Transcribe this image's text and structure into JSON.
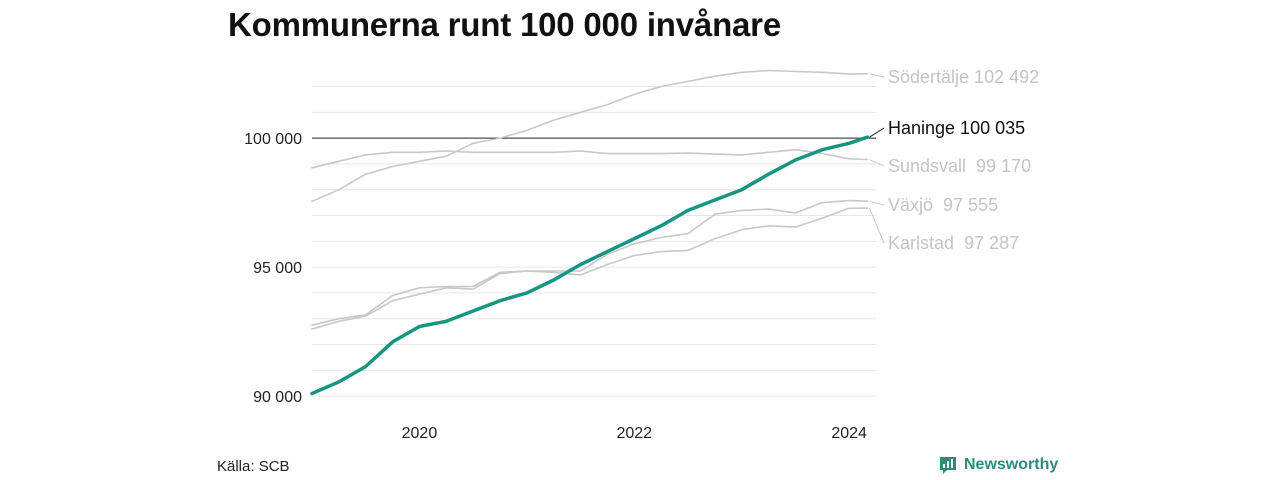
{
  "title": "Kommunerna runt 100 000 invånare",
  "source": "Källa: SCB",
  "brand": "Newsworthy",
  "colors": {
    "highlight": "#169581",
    "other": "#c8c8c8",
    "grid": "#e6e6e6",
    "reference": "#222222",
    "brand": "#2e8b78"
  },
  "chart_data": {
    "type": "line",
    "title": "Kommunerna runt 100 000 invånare",
    "xlabel": "",
    "ylabel": "",
    "xlim": [
      2019.0,
      2024.25
    ],
    "ylim": [
      89850,
      102950
    ],
    "x_ticks": [
      2020,
      2022,
      2024
    ],
    "x_tick_labels": [
      "2020",
      "2022",
      "2024"
    ],
    "y_ticks": [
      90000,
      95000,
      100000
    ],
    "y_tick_labels": [
      "90 000",
      "95 000",
      "100 000"
    ],
    "grid": true,
    "reference_line": 100000,
    "series": [
      {
        "name": "Södertälje",
        "label": "Södertälje 102 492",
        "highlight": false,
        "points": [
          [
            2019.0,
            97550
          ],
          [
            2019.25,
            98000
          ],
          [
            2019.5,
            98600
          ],
          [
            2019.75,
            98900
          ],
          [
            2020.0,
            99100
          ],
          [
            2020.25,
            99300
          ],
          [
            2020.5,
            99800
          ],
          [
            2020.75,
            100000
          ],
          [
            2021.0,
            100300
          ],
          [
            2021.25,
            100700
          ],
          [
            2021.5,
            101000
          ],
          [
            2021.75,
            101300
          ],
          [
            2022.0,
            101700
          ],
          [
            2022.25,
            102000
          ],
          [
            2022.5,
            102200
          ],
          [
            2022.75,
            102400
          ],
          [
            2023.0,
            102550
          ],
          [
            2023.25,
            102620
          ],
          [
            2023.5,
            102580
          ],
          [
            2023.75,
            102550
          ],
          [
            2024.0,
            102480
          ],
          [
            2024.17,
            102492
          ]
        ]
      },
      {
        "name": "Haninge",
        "label": "Haninge 100 035",
        "highlight": true,
        "points": [
          [
            2019.0,
            90100
          ],
          [
            2019.25,
            90550
          ],
          [
            2019.5,
            91150
          ],
          [
            2019.75,
            92100
          ],
          [
            2020.0,
            92700
          ],
          [
            2020.25,
            92900
          ],
          [
            2020.5,
            93300
          ],
          [
            2020.75,
            93700
          ],
          [
            2021.0,
            94000
          ],
          [
            2021.25,
            94500
          ],
          [
            2021.5,
            95100
          ],
          [
            2021.75,
            95600
          ],
          [
            2022.0,
            96100
          ],
          [
            2022.25,
            96600
          ],
          [
            2022.5,
            97200
          ],
          [
            2022.75,
            97600
          ],
          [
            2023.0,
            98000
          ],
          [
            2023.25,
            98600
          ],
          [
            2023.5,
            99150
          ],
          [
            2023.75,
            99550
          ],
          [
            2024.0,
            99800
          ],
          [
            2024.17,
            100035
          ]
        ]
      },
      {
        "name": "Sundsvall",
        "label": "Sundsvall  99 170",
        "highlight": false,
        "points": [
          [
            2019.0,
            98850
          ],
          [
            2019.25,
            99100
          ],
          [
            2019.5,
            99350
          ],
          [
            2019.75,
            99450
          ],
          [
            2020.0,
            99450
          ],
          [
            2020.25,
            99500
          ],
          [
            2020.5,
            99450
          ],
          [
            2020.75,
            99450
          ],
          [
            2021.0,
            99450
          ],
          [
            2021.25,
            99450
          ],
          [
            2021.5,
            99500
          ],
          [
            2021.75,
            99400
          ],
          [
            2022.0,
            99400
          ],
          [
            2022.25,
            99400
          ],
          [
            2022.5,
            99420
          ],
          [
            2022.75,
            99380
          ],
          [
            2023.0,
            99350
          ],
          [
            2023.25,
            99450
          ],
          [
            2023.5,
            99550
          ],
          [
            2023.75,
            99400
          ],
          [
            2024.0,
            99200
          ],
          [
            2024.17,
            99170
          ]
        ]
      },
      {
        "name": "Växjö",
        "label": "Växjö  97 555",
        "highlight": false,
        "points": [
          [
            2019.0,
            92750
          ],
          [
            2019.25,
            93000
          ],
          [
            2019.5,
            93150
          ],
          [
            2019.75,
            93900
          ],
          [
            2020.0,
            94200
          ],
          [
            2020.25,
            94250
          ],
          [
            2020.5,
            94250
          ],
          [
            2020.75,
            94800
          ],
          [
            2021.0,
            94850
          ],
          [
            2021.25,
            94850
          ],
          [
            2021.5,
            94850
          ],
          [
            2021.75,
            95500
          ],
          [
            2022.0,
            95900
          ],
          [
            2022.25,
            96150
          ],
          [
            2022.5,
            96300
          ],
          [
            2022.75,
            97050
          ],
          [
            2023.0,
            97200
          ],
          [
            2023.25,
            97250
          ],
          [
            2023.5,
            97100
          ],
          [
            2023.75,
            97500
          ],
          [
            2024.0,
            97580
          ],
          [
            2024.17,
            97555
          ]
        ]
      },
      {
        "name": "Karlstad",
        "label": "Karlstad  97 287",
        "highlight": false,
        "points": [
          [
            2019.0,
            92600
          ],
          [
            2019.25,
            92900
          ],
          [
            2019.5,
            93100
          ],
          [
            2019.75,
            93700
          ],
          [
            2020.0,
            93950
          ],
          [
            2020.25,
            94200
          ],
          [
            2020.5,
            94150
          ],
          [
            2020.75,
            94750
          ],
          [
            2021.0,
            94850
          ],
          [
            2021.25,
            94800
          ],
          [
            2021.5,
            94700
          ],
          [
            2021.75,
            95100
          ],
          [
            2022.0,
            95450
          ],
          [
            2022.25,
            95600
          ],
          [
            2022.5,
            95650
          ],
          [
            2022.75,
            96100
          ],
          [
            2023.0,
            96450
          ],
          [
            2023.25,
            96600
          ],
          [
            2023.5,
            96550
          ],
          [
            2023.75,
            96900
          ],
          [
            2024.0,
            97280
          ],
          [
            2024.17,
            97287
          ]
        ]
      }
    ]
  }
}
